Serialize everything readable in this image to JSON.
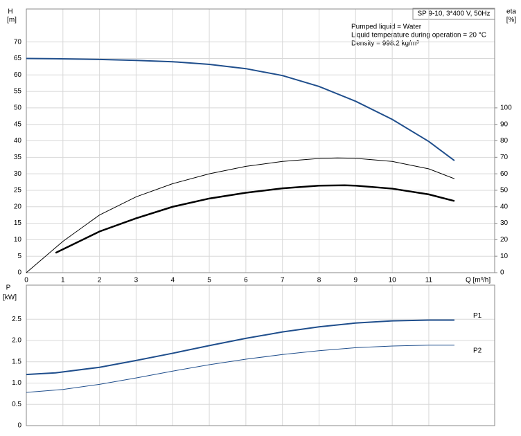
{
  "chart_data": [
    {
      "type": "line",
      "title": "SP 9-10, 3*400 V, 50Hz",
      "annotations": [
        "Pumped liquid = Water",
        "Liquid temperature during operation = 20 °C",
        "Density = 998.2 kg/m³"
      ],
      "ylabel": "H",
      "ylabel_unit": "[m]",
      "y2label": "eta",
      "y2label_unit": "[%]",
      "xlabel": "Q [m³/h]",
      "xlim": [
        0,
        12.8
      ],
      "xticks": [
        0,
        1,
        2,
        3,
        4,
        5,
        6,
        7,
        8,
        9,
        10,
        11
      ],
      "ylim": [
        0,
        80
      ],
      "yticks": [
        0,
        5,
        10,
        15,
        20,
        25,
        30,
        35,
        40,
        45,
        50,
        55,
        60,
        65,
        70
      ],
      "y2lim": [
        0,
        160
      ],
      "y2ticks": [
        0,
        10,
        20,
        30,
        40,
        50,
        60,
        70,
        80,
        90,
        100
      ],
      "grid": true,
      "series": [
        {
          "color": "#1f4e8c",
          "line_width": 2,
          "x": [
            0,
            0.8,
            2,
            3,
            4,
            5,
            6,
            7,
            8,
            9,
            10,
            11,
            11.7
          ],
          "values": [
            65,
            64.9,
            64.7,
            64.4,
            64,
            63.2,
            61.9,
            59.8,
            56.5,
            52,
            46.5,
            39.8,
            34
          ]
        },
        {
          "axis": "y2",
          "color": "#000000",
          "line_width": 1,
          "x": [
            0,
            1,
            2,
            3,
            4,
            5,
            6,
            7,
            8,
            8.5,
            9,
            10,
            11,
            11.7
          ],
          "values": [
            0,
            19,
            35,
            46,
            54,
            60,
            64.5,
            67.5,
            69.3,
            69.6,
            69.4,
            67.5,
            63,
            57
          ]
        },
        {
          "axis": "y2",
          "color": "#000000",
          "line_width": 2.5,
          "x": [
            0.8,
            2,
            3,
            4,
            5,
            6,
            7,
            8,
            8.7,
            9,
            10,
            11,
            11.7
          ],
          "values": [
            12,
            25,
            33,
            40,
            45,
            48.5,
            51.2,
            52.8,
            53,
            52.8,
            51,
            47.5,
            43.5
          ]
        }
      ]
    },
    {
      "type": "line",
      "ylabel": "P",
      "ylabel_unit": "[kW]",
      "xlim": [
        0,
        12.8
      ],
      "xticks": [
        0,
        1,
        2,
        3,
        4,
        5,
        6,
        7,
        8,
        9,
        10,
        11
      ],
      "ylim": [
        0,
        3.3
      ],
      "yticks": [
        0,
        0.5,
        {
          "value": 1,
          "label": "1.0"
        },
        1.5,
        {
          "value": 2,
          "label": "2.0"
        },
        2.5
      ],
      "grid": true,
      "series": [
        {
          "name": "P1",
          "color": "#1f4e8c",
          "line_width": 2,
          "x": [
            0,
            0.8,
            2,
            3,
            4,
            5,
            6,
            7,
            8,
            9,
            10,
            11,
            11.7
          ],
          "values": [
            1.2,
            1.24,
            1.37,
            1.53,
            1.7,
            1.88,
            2.05,
            2.2,
            2.32,
            2.41,
            2.46,
            2.48,
            2.48
          ]
        },
        {
          "name": "P2",
          "color": "#1f4e8c",
          "line_width": 1,
          "x": [
            0,
            1,
            2,
            3,
            4,
            5,
            6,
            7,
            8,
            9,
            10,
            11,
            11.7
          ],
          "values": [
            0.78,
            0.85,
            0.97,
            1.12,
            1.28,
            1.43,
            1.56,
            1.67,
            1.76,
            1.83,
            1.87,
            1.89,
            1.89
          ]
        }
      ]
    }
  ]
}
